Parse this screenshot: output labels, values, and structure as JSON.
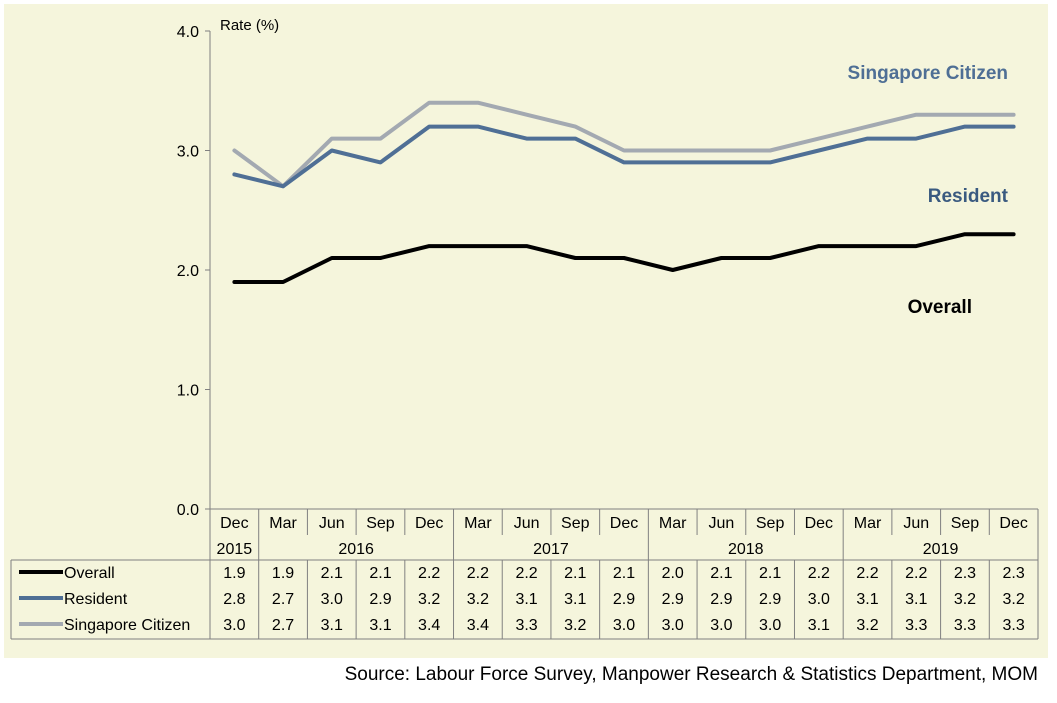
{
  "chart_data": {
    "type": "line",
    "ylabel": "Rate  (%)",
    "ylim": [
      0,
      4
    ],
    "yticks": [
      "0.0",
      "1.0",
      "2.0",
      "3.0",
      "4.0"
    ],
    "grid": false,
    "background_color": "#f5f5dc",
    "categories": [
      "Dec",
      "Mar",
      "Jun",
      "Sep",
      "Dec",
      "Mar",
      "Jun",
      "Sep",
      "Dec",
      "Mar",
      "Jun",
      "Sep",
      "Dec",
      "Mar",
      "Jun",
      "Sep",
      "Dec"
    ],
    "years": [
      {
        "label": "2015",
        "start": 0,
        "end": 0
      },
      {
        "label": "2016",
        "start": 1,
        "end": 4
      },
      {
        "label": "2017",
        "start": 5,
        "end": 8
      },
      {
        "label": "2018",
        "start": 9,
        "end": 12
      },
      {
        "label": "2019",
        "start": 13,
        "end": 16
      }
    ],
    "series": [
      {
        "name": "Overall",
        "color": "#000000",
        "values": [
          1.9,
          1.9,
          2.1,
          2.1,
          2.2,
          2.2,
          2.2,
          2.1,
          2.1,
          2.0,
          2.1,
          2.1,
          2.2,
          2.2,
          2.2,
          2.3,
          2.3
        ],
        "display": [
          "1.9",
          "1.9",
          "2.1",
          "2.1",
          "2.2",
          "2.2",
          "2.2",
          "2.1",
          "2.1",
          "2.0",
          "2.1",
          "2.1",
          "2.2",
          "2.2",
          "2.2",
          "2.3",
          "2.3"
        ]
      },
      {
        "name": "Resident",
        "color": "#4f6f95",
        "values": [
          2.8,
          2.7,
          3.0,
          2.9,
          3.2,
          3.2,
          3.1,
          3.1,
          2.9,
          2.9,
          2.9,
          2.9,
          3.0,
          3.1,
          3.1,
          3.2,
          3.2
        ],
        "display": [
          "2.8",
          "2.7",
          "3.0",
          "2.9",
          "3.2",
          "3.2",
          "3.1",
          "3.1",
          "2.9",
          "2.9",
          "2.9",
          "2.9",
          "3.0",
          "3.1",
          "3.1",
          "3.2",
          "3.2"
        ]
      },
      {
        "name": "Singapore Citizen",
        "color": "#a3a9b1",
        "values": [
          3.0,
          2.7,
          3.1,
          3.1,
          3.4,
          3.4,
          3.3,
          3.2,
          3.0,
          3.0,
          3.0,
          3.0,
          3.1,
          3.2,
          3.3,
          3.3,
          3.3
        ],
        "display": [
          "3.0",
          "2.7",
          "3.1",
          "3.1",
          "3.4",
          "3.4",
          "3.3",
          "3.2",
          "3.0",
          "3.0",
          "3.0",
          "3.0",
          "3.1",
          "3.2",
          "3.3",
          "3.3",
          "3.3"
        ]
      }
    ],
    "annotations": [
      {
        "text": "Singapore Citizen",
        "series": "Singapore Citizen",
        "color": "#4f6f95"
      },
      {
        "text": "Resident",
        "series": "Resident",
        "color": "#3a5a80"
      },
      {
        "text": "Overall",
        "series": "Overall",
        "color": "#000000"
      }
    ]
  },
  "source": "Source: Labour Force Survey, Manpower Research & Statistics Department, MOM"
}
